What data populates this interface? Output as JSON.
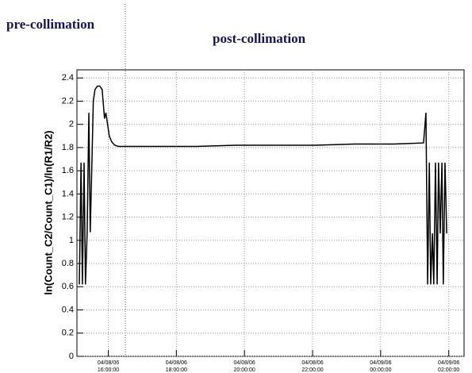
{
  "chart_data": {
    "type": "line",
    "annotations": [
      "pre-collimation",
      "post-collimation"
    ],
    "y_label": "ln(Count_C2/Count_C1)/ln(R1/R2)",
    "x": [
      15.15,
      15.2,
      15.24,
      15.29,
      15.33,
      15.38,
      15.43,
      15.47,
      15.52,
      15.56,
      15.61,
      15.68,
      15.75,
      15.82,
      15.89,
      15.93,
      15.98,
      16.03,
      16.1,
      16.19,
      16.3,
      16.53,
      17.46,
      18.61,
      19.77,
      20.92,
      22.08,
      23.23,
      24.39,
      25.26,
      25.33,
      25.38,
      25.43,
      25.47,
      25.52,
      25.56,
      25.61,
      25.66,
      25.7,
      25.75,
      25.8,
      25.84,
      25.89,
      25.94
    ],
    "values": [
      0.62,
      1.67,
      0.62,
      1.67,
      0.62,
      1.07,
      2.1,
      1.07,
      1.67,
      2.2,
      2.3,
      2.33,
      2.33,
      2.3,
      2.05,
      2.1,
      2.0,
      1.9,
      1.85,
      1.82,
      1.81,
      1.81,
      1.81,
      1.81,
      1.82,
      1.82,
      1.82,
      1.83,
      1.83,
      1.84,
      2.1,
      0.62,
      1.67,
      0.62,
      1.06,
      0.62,
      1.67,
      0.62,
      1.67,
      1.06,
      1.67,
      0.62,
      1.67,
      1.06
    ],
    "color": "#000000",
    "xlim": [
      15.08,
      26.45
    ],
    "xticks": [
      {
        "value": 16,
        "label": "04/08/06 16:00:00"
      },
      {
        "value": 18,
        "label": "04/08/06 18:00:00"
      },
      {
        "value": 20,
        "label": "04/08/06 20:00:00"
      },
      {
        "value": 22,
        "label": "04/08/06 22:00:00"
      },
      {
        "value": 24,
        "label": "04/09/06 00:00:00"
      },
      {
        "value": 26,
        "label": "04/09/06 02:00:00"
      }
    ],
    "ylim": [
      0,
      2.47
    ],
    "yticks": [
      0,
      0.2,
      0.4,
      0.6,
      0.8,
      1,
      1.2,
      1.4,
      1.6,
      1.8,
      2,
      2.2,
      2.4
    ],
    "grid": true
  }
}
